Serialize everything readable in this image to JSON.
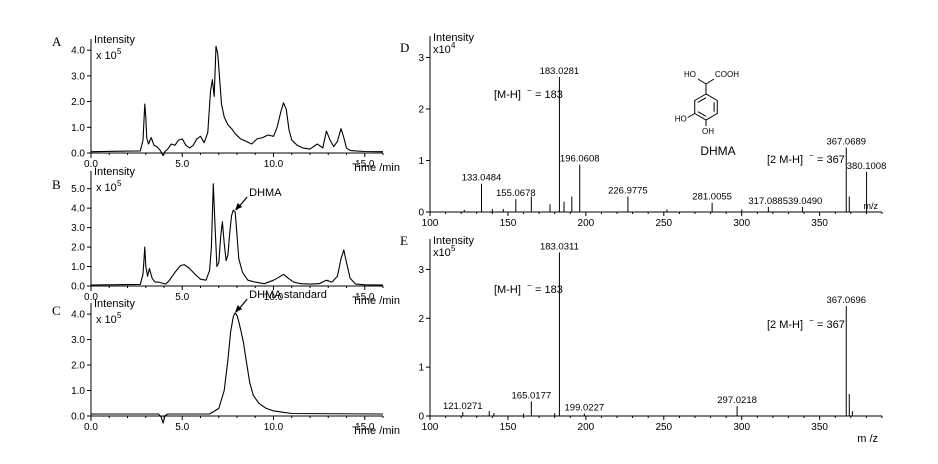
{
  "chart_data": [
    {
      "id": "A",
      "type": "line",
      "panel_label": "A",
      "ylabel_line1": "Intensity",
      "ylabel_prefix": "x 10",
      "ylabel_exp": "5",
      "xlabel": "Time /min",
      "xlim": [
        0,
        16
      ],
      "ylim": [
        0,
        4.2
      ],
      "xticks": [
        "0.0",
        "5.0",
        "10.0",
        "15.0"
      ],
      "xtick_values": [
        0,
        5,
        10,
        15
      ],
      "yticks": [
        "0.0",
        "1.0",
        "2.0",
        "3.0",
        "4.0"
      ],
      "ytick_values": [
        0,
        1,
        2,
        3,
        4
      ],
      "x": [
        0,
        2.7,
        2.85,
        2.95,
        3.0,
        3.05,
        3.15,
        3.3,
        3.45,
        3.6,
        3.8,
        3.95,
        4.05,
        4.2,
        4.4,
        4.6,
        4.8,
        5.0,
        5.2,
        5.4,
        5.6,
        5.8,
        6.0,
        6.2,
        6.4,
        6.55,
        6.65,
        6.75,
        6.85,
        6.95,
        7.05,
        7.15,
        7.3,
        7.5,
        7.7,
        7.9,
        8.2,
        8.5,
        8.8,
        9.1,
        9.4,
        9.7,
        10.0,
        10.2,
        10.4,
        10.55,
        10.7,
        10.85,
        11.0,
        11.3,
        11.6,
        12.0,
        12.4,
        12.7,
        12.9,
        13.1,
        13.3,
        13.5,
        13.7,
        13.85,
        14.0,
        14.2,
        14.5,
        15.0,
        16.0
      ],
      "y": [
        0.05,
        0.08,
        0.5,
        1.9,
        1.4,
        0.6,
        0.35,
        0.6,
        0.3,
        0.25,
        0.1,
        -0.1,
        0.05,
        0.15,
        0.35,
        0.3,
        0.5,
        0.55,
        0.3,
        0.2,
        0.3,
        0.55,
        0.65,
        0.4,
        0.8,
        2.4,
        2.85,
        2.2,
        4.15,
        3.85,
        2.85,
        1.9,
        1.4,
        1.1,
        0.95,
        0.75,
        0.55,
        0.45,
        0.35,
        0.55,
        0.6,
        0.7,
        0.65,
        1.0,
        1.6,
        1.95,
        1.7,
        0.9,
        0.5,
        0.3,
        0.2,
        0.15,
        0.35,
        0.2,
        0.85,
        0.5,
        0.25,
        0.45,
        0.95,
        0.6,
        0.2,
        0.1,
        0.08,
        0.06,
        0.05
      ]
    },
    {
      "id": "B",
      "type": "line",
      "panel_label": "B",
      "ylabel_line1": "Intensity",
      "ylabel_prefix": "x 10",
      "ylabel_exp": "5",
      "xlabel": "Time /min",
      "annotation": "DHMA",
      "annotation_x": 7.9,
      "annotation_y": 3.8,
      "xlim": [
        0,
        16
      ],
      "ylim": [
        0,
        5.6
      ],
      "xticks": [
        "0.0",
        "5.0",
        "10.0",
        "15.0"
      ],
      "xtick_values": [
        0,
        5,
        10,
        15
      ],
      "yticks": [
        "0.0",
        "1.0",
        "2.0",
        "3.0",
        "4.0",
        "5.0"
      ],
      "ytick_values": [
        0,
        1,
        2,
        3,
        4,
        5
      ],
      "x": [
        0,
        2.7,
        2.85,
        2.95,
        3.0,
        3.1,
        3.2,
        3.35,
        3.5,
        3.7,
        3.9,
        4.1,
        4.3,
        4.6,
        4.9,
        5.1,
        5.4,
        5.7,
        6.0,
        6.3,
        6.5,
        6.6,
        6.7,
        6.8,
        6.9,
        7.0,
        7.1,
        7.2,
        7.3,
        7.4,
        7.5,
        7.6,
        7.7,
        7.8,
        7.9,
        8.0,
        8.1,
        8.3,
        8.6,
        9.0,
        9.5,
        10.0,
        10.3,
        10.55,
        10.8,
        11.1,
        11.5,
        12.0,
        12.5,
        12.9,
        13.2,
        13.5,
        13.7,
        13.85,
        14.0,
        14.2,
        14.5,
        15.0,
        16.0
      ],
      "y": [
        0.05,
        0.08,
        0.6,
        2.0,
        1.0,
        0.5,
        0.9,
        0.4,
        0.2,
        0.2,
        0.15,
        0.1,
        0.3,
        0.7,
        1.05,
        1.1,
        0.9,
        0.6,
        0.35,
        0.3,
        0.8,
        2.0,
        5.25,
        3.0,
        1.0,
        1.2,
        2.5,
        3.3,
        2.2,
        1.3,
        1.6,
        2.7,
        3.6,
        3.9,
        3.8,
        2.6,
        1.4,
        0.7,
        0.3,
        0.2,
        0.12,
        0.3,
        0.45,
        0.6,
        0.4,
        0.2,
        0.12,
        0.1,
        0.12,
        0.3,
        0.2,
        0.5,
        1.4,
        1.85,
        1.2,
        0.4,
        0.1,
        0.06,
        0.05
      ]
    },
    {
      "id": "C",
      "type": "line",
      "panel_label": "C",
      "ylabel_line1": "Intensity",
      "ylabel_prefix": "x 10",
      "ylabel_exp": "5",
      "xlabel": "Time /min",
      "annotation": "DHMA standard",
      "annotation_x": 7.9,
      "annotation_y": 4.0,
      "xlim": [
        0,
        16
      ],
      "ylim": [
        0,
        4.2
      ],
      "xticks": [
        "0.0",
        "5.0",
        "10.0",
        "15.0"
      ],
      "xtick_values": [
        0,
        5,
        10,
        15
      ],
      "yticks": [
        "0.0",
        "1.0",
        "2.0",
        "3.0",
        "4.0"
      ],
      "ytick_values": [
        0,
        1,
        2,
        3,
        4
      ],
      "x": [
        0,
        3.7,
        3.85,
        3.95,
        4.05,
        4.2,
        6.5,
        7.0,
        7.3,
        7.5,
        7.65,
        7.8,
        7.9,
        8.0,
        8.1,
        8.2,
        8.35,
        8.5,
        8.7,
        8.9,
        9.2,
        9.6,
        10.0,
        10.5,
        11.0,
        16.0
      ],
      "y": [
        0.08,
        0.08,
        -0.05,
        -0.28,
        0.0,
        0.08,
        0.08,
        0.3,
        1.0,
        2.2,
        3.3,
        3.9,
        4.05,
        3.95,
        3.7,
        3.4,
        2.9,
        2.2,
        1.3,
        0.8,
        0.5,
        0.3,
        0.2,
        0.15,
        0.1,
        0.08
      ]
    },
    {
      "id": "D",
      "type": "bar",
      "panel_label": "D",
      "ylabel_line1": "Intensity",
      "ylabel_prefix": "x10",
      "ylabel_exp": "4",
      "xlabel": "m/z",
      "xlim": [
        100,
        390
      ],
      "ylim": [
        0,
        3.3
      ],
      "xticks": [
        "100",
        "150",
        "200",
        "250",
        "300",
        "350"
      ],
      "xtick_values": [
        100,
        150,
        200,
        250,
        300,
        350
      ],
      "yticks": [
        "0",
        "1",
        "2",
        "3"
      ],
      "ytick_values": [
        0,
        1,
        2,
        3
      ],
      "peaks_x": [
        133.0484,
        155.0678,
        165.0,
        177.0,
        183.0281,
        186.0,
        191.0,
        196.0608,
        226.9775,
        281.0055,
        317.0885,
        339.049,
        367.0689,
        369.0,
        380.1008,
        140.0,
        147.0,
        122.0,
        252.0,
        300.0
      ],
      "peaks_y": [
        0.55,
        0.25,
        0.3,
        0.15,
        2.62,
        0.2,
        0.3,
        0.92,
        0.3,
        0.18,
        0.1,
        0.1,
        1.25,
        0.3,
        0.78,
        0.06,
        0.06,
        0.04,
        0.05,
        0.05
      ],
      "peak_labels": [
        {
          "text": "133.0484",
          "x": 133.0484,
          "y": 0.55
        },
        {
          "text": "155.0678",
          "x": 155.0678,
          "y": 0.25
        },
        {
          "text": "183.0281",
          "x": 183.0281,
          "y": 2.62
        },
        {
          "text": "196.0608",
          "x": 196.0608,
          "y": 0.92
        },
        {
          "text": "226.9775",
          "x": 226.9775,
          "y": 0.3
        },
        {
          "text": "281.0055",
          "x": 281.0055,
          "y": 0.18
        },
        {
          "text": "317.088539.0490",
          "x": 328,
          "y": 0.1
        },
        {
          "text": "367.0689",
          "x": 367.0689,
          "y": 1.25
        },
        {
          "text": "380.1008",
          "x": 380.1008,
          "y": 0.78
        }
      ],
      "ion_label_1": "[M-H]",
      "ion_label_1_value": "= 183",
      "ion_label_2": "[2 M-H]",
      "ion_label_2_value": "= 367",
      "compound_name": "DHMA",
      "structure_labels": {
        "ho_top": "HO",
        "cooh": "COOH",
        "ho_ring": "HO",
        "oh_ring": "OH"
      }
    },
    {
      "id": "E",
      "type": "bar",
      "panel_label": "E",
      "ylabel_line1": "Intensity",
      "ylabel_prefix": "x10",
      "ylabel_exp": "5",
      "xlabel": "m /z",
      "xlim": [
        100,
        390
      ],
      "ylim": [
        0,
        3.5
      ],
      "xticks": [
        "100",
        "150",
        "200",
        "250",
        "300",
        "350"
      ],
      "xtick_values": [
        100,
        150,
        200,
        250,
        300,
        350
      ],
      "yticks": [
        "0",
        "1",
        "2",
        "3"
      ],
      "ytick_values": [
        0,
        1,
        2,
        3
      ],
      "peaks_x": [
        121.0271,
        138.0,
        141.0,
        165.0177,
        183.0311,
        199.0227,
        297.0218,
        367.0696,
        369.0,
        371.0,
        180.0,
        160.0
      ],
      "peaks_y": [
        0.08,
        0.1,
        0.06,
        0.3,
        3.35,
        0.05,
        0.2,
        2.25,
        0.45,
        0.1,
        0.06,
        0.05
      ],
      "peak_labels": [
        {
          "text": "121.0271",
          "x": 121.0271,
          "y": 0.08
        },
        {
          "text": "165.0177",
          "x": 165.0177,
          "y": 0.3
        },
        {
          "text": "183.0311",
          "x": 183.0311,
          "y": 3.35
        },
        {
          "text": "199.0227",
          "x": 199.0227,
          "y": 0.05
        },
        {
          "text": "297.0218",
          "x": 297.0218,
          "y": 0.2
        },
        {
          "text": "367.0696",
          "x": 367.0696,
          "y": 2.25
        }
      ],
      "ion_label_1": "[M-H]",
      "ion_label_1_value": "= 183",
      "ion_label_2": "[2 M-H]",
      "ion_label_2_value": "= 367"
    }
  ]
}
